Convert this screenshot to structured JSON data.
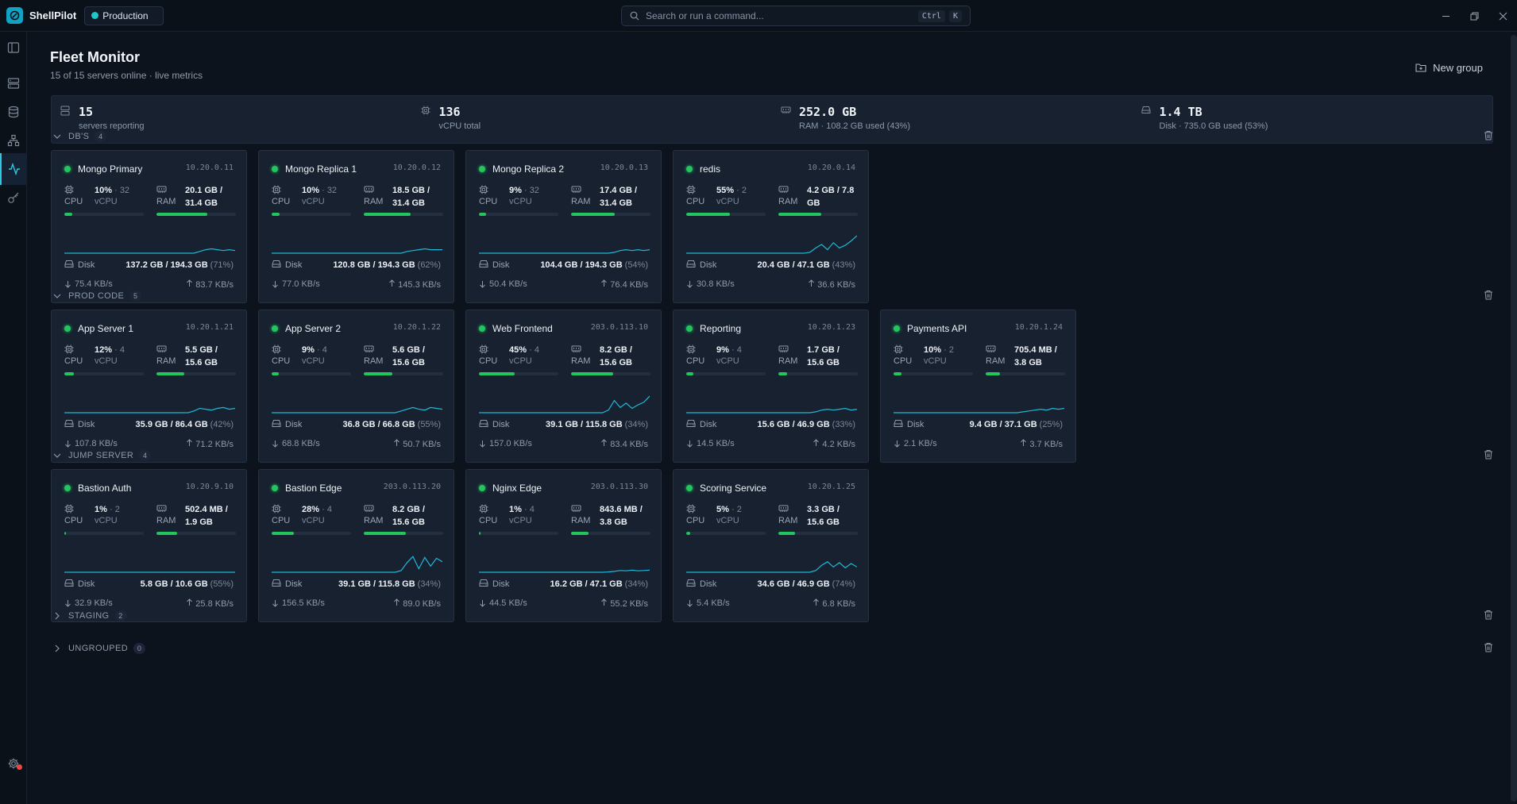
{
  "app": {
    "name": "ShellPilot",
    "environment": "Production"
  },
  "search": {
    "placeholder": "Search or run a command...",
    "shortcut_mod": "Ctrl",
    "shortcut_key": "K"
  },
  "page": {
    "title": "Fleet Monitor",
    "subtitle": "15 of 15 servers online · live metrics",
    "new_group_label": "New group"
  },
  "stats": [
    {
      "icon": "server-icon",
      "value": "15",
      "label": "servers reporting"
    },
    {
      "icon": "cpu-icon",
      "value": "136",
      "label": "vCPU total"
    },
    {
      "icon": "ram-icon",
      "value": "252.0 GB",
      "label": "RAM · 108.2 GB used (43%)"
    },
    {
      "icon": "disk-icon",
      "value": "1.4 TB",
      "label": "Disk · 735.0 GB used (53%)"
    }
  ],
  "labels": {
    "cpu": "CPU",
    "vcpu": "vCPU",
    "ram": "RAM",
    "disk": "Disk"
  },
  "groups": [
    {
      "name": "DB'S",
      "count": "4",
      "expanded": true,
      "servers": [
        {
          "name": "Mongo Primary",
          "ip": "10.20.0.11",
          "cpu_pct": "10%",
          "vcpu": "32",
          "ram": "20.1 GB /",
          "ram_total": "31.4 GB",
          "cpu_fill": 0.1,
          "ram_fill": 0.64,
          "disk": "137.2 GB / 194.3 GB",
          "disk_pct": "(71%)",
          "down": "75.4 KB/s",
          "up": "83.7 KB/s",
          "spark": [
            0,
            0,
            0,
            0,
            0,
            0,
            0,
            0,
            0,
            0,
            0,
            0,
            0,
            0,
            0,
            0,
            0,
            0,
            0,
            0,
            0,
            0,
            0,
            0.1,
            0.2,
            0.25,
            0.2,
            0.15,
            0.2,
            0.15
          ]
        },
        {
          "name": "Mongo Replica 1",
          "ip": "10.20.0.12",
          "cpu_pct": "10%",
          "vcpu": "32",
          "ram": "18.5 GB /",
          "ram_total": "31.4 GB",
          "cpu_fill": 0.1,
          "ram_fill": 0.59,
          "disk": "120.8 GB / 194.3 GB",
          "disk_pct": "(62%)",
          "down": "77.0 KB/s",
          "up": "145.3 KB/s",
          "spark": [
            0,
            0,
            0,
            0,
            0,
            0,
            0,
            0,
            0,
            0,
            0,
            0,
            0,
            0,
            0,
            0,
            0,
            0,
            0,
            0,
            0,
            0,
            0,
            0.1,
            0.15,
            0.2,
            0.25,
            0.2,
            0.2,
            0.2
          ]
        },
        {
          "name": "Mongo Replica 2",
          "ip": "10.20.0.13",
          "cpu_pct": "9%",
          "vcpu": "32",
          "ram": "17.4 GB /",
          "ram_total": "31.4 GB",
          "cpu_fill": 0.09,
          "ram_fill": 0.55,
          "disk": "104.4 GB / 194.3 GB",
          "disk_pct": "(54%)",
          "down": "50.4 KB/s",
          "up": "76.4 KB/s",
          "spark": [
            0,
            0,
            0,
            0,
            0,
            0,
            0,
            0,
            0,
            0,
            0,
            0,
            0,
            0,
            0,
            0,
            0,
            0,
            0,
            0,
            0,
            0,
            0,
            0.05,
            0.15,
            0.2,
            0.15,
            0.2,
            0.15,
            0.2
          ]
        },
        {
          "name": "redis",
          "ip": "10.20.0.14",
          "cpu_pct": "55%",
          "vcpu": "2",
          "ram": "4.2 GB / 7.8",
          "ram_total": "GB",
          "cpu_fill": 0.55,
          "ram_fill": 0.54,
          "disk": "20.4 GB / 47.1 GB",
          "disk_pct": "(43%)",
          "down": "30.8 KB/s",
          "up": "36.6 KB/s",
          "spark": [
            0,
            0,
            0,
            0,
            0,
            0,
            0,
            0,
            0,
            0,
            0,
            0,
            0,
            0,
            0,
            0,
            0,
            0,
            0,
            0,
            0,
            0.05,
            0.3,
            0.5,
            0.2,
            0.6,
            0.3,
            0.45,
            0.7,
            1.0
          ]
        }
      ]
    },
    {
      "name": "PROD CODE",
      "count": "5",
      "expanded": true,
      "servers": [
        {
          "name": "App Server 1",
          "ip": "10.20.1.21",
          "cpu_pct": "12%",
          "vcpu": "4",
          "ram": "5.5 GB /",
          "ram_total": "15.6 GB",
          "cpu_fill": 0.12,
          "ram_fill": 0.35,
          "disk": "35.9 GB / 86.4 GB",
          "disk_pct": "(42%)",
          "down": "107.8 KB/s",
          "up": "71.2 KB/s",
          "spark": [
            0,
            0,
            0,
            0,
            0,
            0,
            0,
            0,
            0,
            0,
            0,
            0,
            0,
            0,
            0,
            0,
            0,
            0,
            0,
            0,
            0,
            0,
            0.1,
            0.25,
            0.2,
            0.15,
            0.25,
            0.3,
            0.2,
            0.25
          ]
        },
        {
          "name": "App Server 2",
          "ip": "10.20.1.22",
          "cpu_pct": "9%",
          "vcpu": "4",
          "ram": "5.6 GB /",
          "ram_total": "15.6 GB",
          "cpu_fill": 0.09,
          "ram_fill": 0.36,
          "disk": "36.8 GB / 66.8 GB",
          "disk_pct": "(55%)",
          "down": "68.8 KB/s",
          "up": "50.7 KB/s",
          "spark": [
            0,
            0,
            0,
            0,
            0,
            0,
            0,
            0,
            0,
            0,
            0,
            0,
            0,
            0,
            0,
            0,
            0,
            0,
            0,
            0,
            0,
            0,
            0.1,
            0.2,
            0.3,
            0.2,
            0.15,
            0.3,
            0.25,
            0.2
          ]
        },
        {
          "name": "Web Frontend",
          "ip": "203.0.113.10",
          "cpu_pct": "45%",
          "vcpu": "4",
          "ram": "8.2 GB /",
          "ram_total": "15.6 GB",
          "cpu_fill": 0.45,
          "ram_fill": 0.53,
          "disk": "39.1 GB / 115.8 GB",
          "disk_pct": "(34%)",
          "down": "157.0 KB/s",
          "up": "83.4 KB/s",
          "spark": [
            0,
            0,
            0,
            0,
            0,
            0,
            0,
            0,
            0,
            0,
            0,
            0,
            0,
            0,
            0,
            0,
            0,
            0,
            0,
            0,
            0,
            0,
            0.15,
            0.7,
            0.3,
            0.55,
            0.25,
            0.45,
            0.6,
            0.95
          ]
        },
        {
          "name": "Reporting",
          "ip": "10.20.1.23",
          "cpu_pct": "9%",
          "vcpu": "4",
          "ram": "1.7 GB /",
          "ram_total": "15.6 GB",
          "cpu_fill": 0.09,
          "ram_fill": 0.11,
          "disk": "15.6 GB / 46.9 GB",
          "disk_pct": "(33%)",
          "down": "14.5 KB/s",
          "up": "4.2 KB/s",
          "spark": [
            0,
            0,
            0,
            0,
            0,
            0,
            0,
            0,
            0,
            0,
            0,
            0,
            0,
            0,
            0,
            0,
            0,
            0,
            0,
            0,
            0,
            0,
            0.05,
            0.15,
            0.2,
            0.15,
            0.2,
            0.25,
            0.15,
            0.2
          ]
        },
        {
          "name": "Payments API",
          "ip": "10.20.1.24",
          "cpu_pct": "10%",
          "vcpu": "2",
          "ram": "705.4 MB /",
          "ram_total": "3.8 GB",
          "cpu_fill": 0.1,
          "ram_fill": 0.18,
          "disk": "9.4 GB / 37.1 GB",
          "disk_pct": "(25%)",
          "down": "2.1 KB/s",
          "up": "3.7 KB/s",
          "spark": [
            0,
            0,
            0,
            0,
            0,
            0,
            0,
            0,
            0,
            0,
            0,
            0,
            0,
            0,
            0,
            0,
            0,
            0,
            0,
            0,
            0,
            0,
            0.05,
            0.1,
            0.15,
            0.2,
            0.15,
            0.25,
            0.2,
            0.25
          ]
        }
      ]
    },
    {
      "name": "JUMP SERVER",
      "count": "4",
      "expanded": true,
      "servers": [
        {
          "name": "Bastion Auth",
          "ip": "10.20.9.10",
          "cpu_pct": "1%",
          "vcpu": "2",
          "ram": "502.4 MB /",
          "ram_total": "1.9 GB",
          "cpu_fill": 0.01,
          "ram_fill": 0.26,
          "disk": "5.8 GB / 10.6 GB",
          "disk_pct": "(55%)",
          "down": "32.9 KB/s",
          "up": "25.8 KB/s",
          "spark": [
            0,
            0,
            0,
            0,
            0,
            0,
            0,
            0,
            0,
            0,
            0,
            0,
            0,
            0,
            0,
            0,
            0,
            0,
            0,
            0,
            0,
            0,
            0,
            0,
            0,
            0,
            0,
            0,
            0,
            0
          ]
        },
        {
          "name": "Bastion Edge",
          "ip": "203.0.113.20",
          "cpu_pct": "28%",
          "vcpu": "4",
          "ram": "8.2 GB /",
          "ram_total": "15.6 GB",
          "cpu_fill": 0.28,
          "ram_fill": 0.53,
          "disk": "39.1 GB / 115.8 GB",
          "disk_pct": "(34%)",
          "down": "156.5 KB/s",
          "up": "89.0 KB/s",
          "spark": [
            0,
            0,
            0,
            0,
            0,
            0,
            0,
            0,
            0,
            0,
            0,
            0,
            0,
            0,
            0,
            0,
            0,
            0,
            0,
            0,
            0,
            0,
            0.1,
            0.55,
            0.9,
            0.2,
            0.85,
            0.35,
            0.8,
            0.6
          ]
        },
        {
          "name": "Nginx Edge",
          "ip": "203.0.113.30",
          "cpu_pct": "1%",
          "vcpu": "4",
          "ram": "843.6 MB /",
          "ram_total": "3.8 GB",
          "cpu_fill": 0.01,
          "ram_fill": 0.22,
          "disk": "16.2 GB / 47.1 GB",
          "disk_pct": "(34%)",
          "down": "44.5 KB/s",
          "up": "55.2 KB/s",
          "spark": [
            0,
            0,
            0,
            0,
            0,
            0,
            0,
            0,
            0,
            0,
            0,
            0,
            0,
            0,
            0,
            0,
            0,
            0,
            0,
            0,
            0,
            0,
            0.02,
            0.05,
            0.1,
            0.08,
            0.12,
            0.08,
            0.1,
            0.12
          ]
        },
        {
          "name": "Scoring Service",
          "ip": "10.20.1.25",
          "cpu_pct": "5%",
          "vcpu": "2",
          "ram": "3.3 GB /",
          "ram_total": "15.6 GB",
          "cpu_fill": 0.05,
          "ram_fill": 0.21,
          "disk": "34.6 GB / 46.9 GB",
          "disk_pct": "(74%)",
          "down": "5.4 KB/s",
          "up": "6.8 KB/s",
          "spark": [
            0,
            0,
            0,
            0,
            0,
            0,
            0,
            0,
            0,
            0,
            0,
            0,
            0,
            0,
            0,
            0,
            0,
            0,
            0,
            0,
            0,
            0,
            0.1,
            0.4,
            0.6,
            0.3,
            0.55,
            0.25,
            0.5,
            0.3
          ]
        }
      ]
    },
    {
      "name": "STAGING",
      "count": "2",
      "expanded": false,
      "servers": []
    },
    {
      "name": "UNGROUPED",
      "count": "0",
      "expanded": false,
      "servers": []
    }
  ],
  "colors": {
    "accent": "#2fc6e0",
    "online": "#22c55e",
    "sparkline": "#1fb8d6",
    "notification": "#ef4444"
  }
}
